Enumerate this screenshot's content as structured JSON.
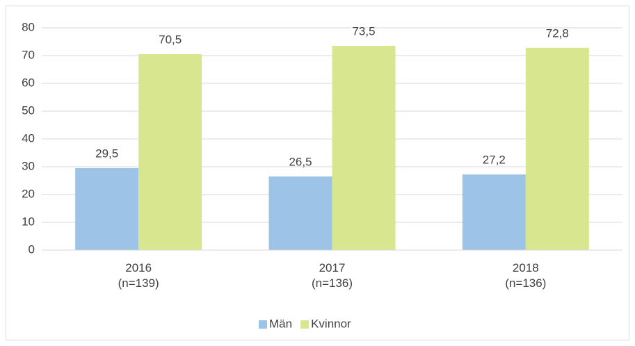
{
  "chart_data": {
    "type": "bar",
    "categories": [
      [
        "2016",
        "(n=139)"
      ],
      [
        "2017",
        "(n=136)"
      ],
      [
        "2018",
        "(n=136)"
      ]
    ],
    "series": [
      {
        "name": "Män",
        "color": "#9dc3e6",
        "values": [
          29.5,
          26.5,
          27.2
        ],
        "value_labels": [
          "29,5",
          "26,5",
          "27,2"
        ]
      },
      {
        "name": "Kvinnor",
        "color": "#d9e690",
        "values": [
          70.5,
          73.5,
          72.8
        ],
        "value_labels": [
          "70,5",
          "73,5",
          "72,8"
        ]
      }
    ],
    "ylim": [
      0,
      80
    ],
    "yticks": [
      0,
      10,
      20,
      30,
      40,
      50,
      60,
      70,
      80
    ],
    "grid": true,
    "legend": "bottom"
  }
}
